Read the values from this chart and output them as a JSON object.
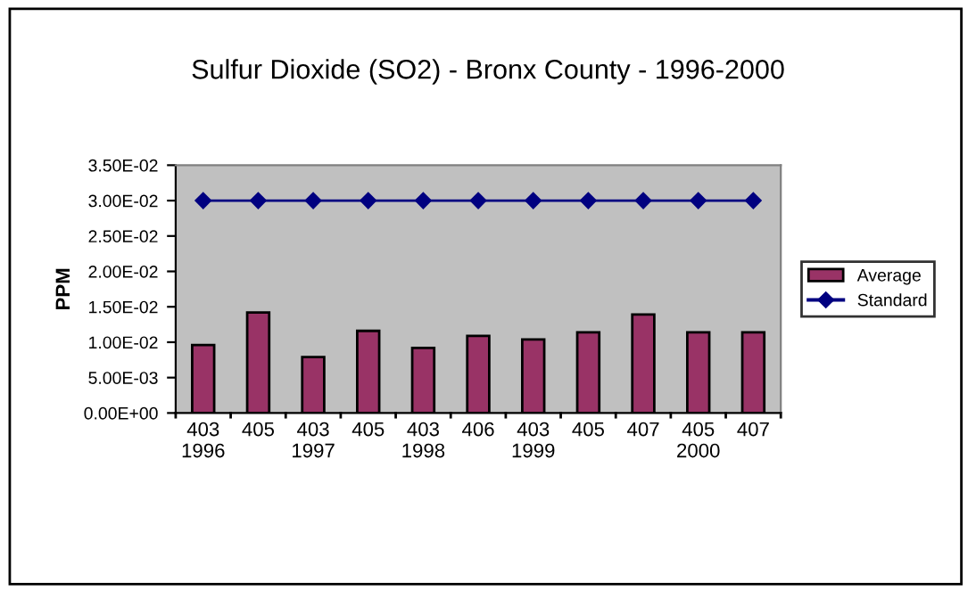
{
  "chart_data": {
    "type": "bar",
    "title": "Sulfur Dioxide (SO2) - Bronx County - 1996-2000",
    "ylabel": "PPM",
    "categories": [
      "403\n1996",
      "405",
      "403\n1997",
      "405",
      "403\n1998",
      "406",
      "403\n1999",
      "405",
      "407",
      "405\n2000",
      "407"
    ],
    "series": [
      {
        "name": "Average",
        "color": "#993366",
        "values": [
          0.0096,
          0.0142,
          0.0079,
          0.0116,
          0.0092,
          0.0109,
          0.0104,
          0.0114,
          0.0139,
          0.0114,
          0.0114
        ]
      },
      {
        "name": "Standard",
        "type": "line",
        "color": "#000080",
        "marker": "diamond",
        "values": [
          0.03,
          0.03,
          0.03,
          0.03,
          0.03,
          0.03,
          0.03,
          0.03,
          0.03,
          0.03,
          0.03
        ]
      }
    ],
    "ylim": [
      0,
      0.035
    ],
    "yticks": [
      {
        "value": 0,
        "label": "0.00E+00"
      },
      {
        "value": 0.005,
        "label": "5.00E-03"
      },
      {
        "value": 0.01,
        "label": "1.00E-02"
      },
      {
        "value": 0.015,
        "label": "1.50E-02"
      },
      {
        "value": 0.02,
        "label": "2.00E-02"
      },
      {
        "value": 0.025,
        "label": "2.50E-02"
      },
      {
        "value": 0.03,
        "label": "3.00E-02"
      },
      {
        "value": 0.035,
        "label": "3.50E-02"
      }
    ],
    "grid": false,
    "legend": "right"
  }
}
